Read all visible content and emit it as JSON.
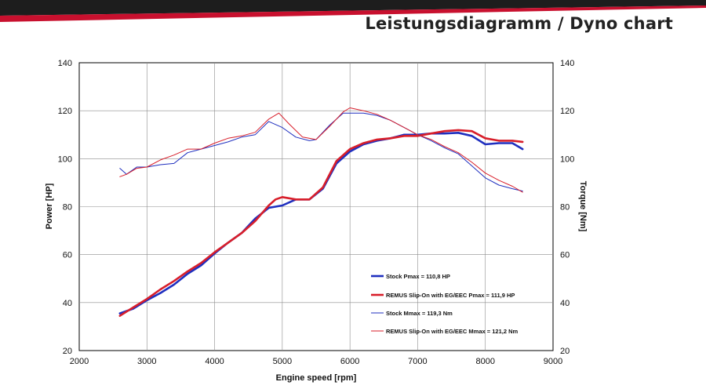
{
  "header": {
    "title": "Leistungsdiagramm / Dyno chart"
  },
  "colors": {
    "stock": "#1f2fbf",
    "remus": "#d81e2a",
    "banner_dark": "#1a1a1a",
    "banner_red": "#c8102e"
  },
  "chart_data": {
    "type": "line",
    "xlabel": "Engine speed [rpm]",
    "ylabel": "Power [HP]",
    "y2label": "Torque [Nm]",
    "xlim": [
      2000,
      9000
    ],
    "ylim": [
      20,
      140
    ],
    "y2lim": [
      20,
      140
    ],
    "x_ticks": [
      2000,
      3000,
      4000,
      5000,
      6000,
      7000,
      8000,
      9000
    ],
    "y_ticks": [
      20,
      40,
      60,
      80,
      100,
      120,
      140
    ],
    "grid": true,
    "legend_position": "lower-right",
    "series": [
      {
        "name": "Stock Pmax = 110,8 HP",
        "axis": "left",
        "width": "thick",
        "color": "#1f2fbf",
        "x": [
          2600,
          2800,
          3000,
          3200,
          3400,
          3600,
          3800,
          4000,
          4200,
          4400,
          4600,
          4800,
          4900,
          5000,
          5200,
          5400,
          5600,
          5800,
          6000,
          6200,
          6400,
          6600,
          6800,
          7000,
          7200,
          7400,
          7600,
          7800,
          8000,
          8200,
          8400,
          8550
        ],
        "y": [
          35.5,
          37.5,
          41,
          44,
          47.5,
          52,
          55.5,
          60.5,
          65,
          69,
          75,
          79.5,
          80,
          80.5,
          83,
          83,
          87.5,
          98,
          103,
          106,
          107.5,
          108.5,
          110,
          110,
          110.5,
          110.5,
          110.8,
          109.5,
          106,
          106.5,
          106.5,
          104
        ]
      },
      {
        "name": "REMUS Slip-On with EG/EEC Pmax =  111,9 HP",
        "axis": "left",
        "width": "thick",
        "color": "#d81e2a",
        "x": [
          2600,
          2800,
          3000,
          3200,
          3400,
          3600,
          3800,
          4000,
          4200,
          4400,
          4600,
          4800,
          4900,
          5000,
          5200,
          5400,
          5600,
          5800,
          6000,
          6200,
          6400,
          6600,
          6800,
          7000,
          7200,
          7400,
          7600,
          7800,
          8000,
          8200,
          8400,
          8550
        ],
        "y": [
          34.5,
          38,
          41.5,
          45.5,
          49,
          53,
          56.5,
          61,
          65,
          69,
          74,
          80.5,
          83,
          84,
          83,
          83,
          88,
          99,
          104,
          106.5,
          108,
          108.5,
          109.5,
          109.5,
          110.5,
          111.5,
          111.9,
          111.5,
          108.5,
          107.5,
          107.5,
          107
        ]
      },
      {
        "name": "Stock Mmax = 119,3 Nm",
        "axis": "right",
        "width": "thin",
        "color": "#1f2fbf",
        "x": [
          2600,
          2700,
          2850,
          3000,
          3200,
          3400,
          3600,
          3800,
          4000,
          4200,
          4400,
          4600,
          4800,
          5000,
          5200,
          5400,
          5500,
          5700,
          5900,
          6000,
          6200,
          6400,
          6600,
          6800,
          7000,
          7200,
          7400,
          7600,
          7800,
          8000,
          8200,
          8400,
          8550
        ],
        "y": [
          96,
          93.5,
          96.5,
          96.5,
          97.5,
          98,
          102.5,
          104,
          105.5,
          107,
          109,
          110,
          115.5,
          113,
          109,
          107.5,
          108,
          114,
          119,
          119,
          119,
          118,
          116,
          113,
          110,
          107.5,
          104.5,
          102,
          97,
          92,
          89,
          87.5,
          86.5
        ]
      },
      {
        "name": "REMUS Slip-On with EG/EEC Mmax = 121,2 Nm",
        "axis": "right",
        "width": "thin",
        "color": "#d81e2a",
        "x": [
          2600,
          2700,
          2850,
          3000,
          3200,
          3400,
          3600,
          3800,
          4000,
          4200,
          4400,
          4600,
          4800,
          4950,
          5100,
          5300,
          5500,
          5700,
          5900,
          6000,
          6200,
          6400,
          6600,
          6800,
          7000,
          7200,
          7400,
          7600,
          7800,
          8000,
          8200,
          8400,
          8550
        ],
        "y": [
          92.5,
          93.5,
          96,
          96.5,
          99.5,
          101.5,
          104,
          104,
          106.5,
          108.5,
          109.5,
          111,
          116.5,
          119,
          114.5,
          109,
          108,
          113.5,
          119.5,
          121.2,
          120,
          118.5,
          116,
          113,
          110,
          108,
          105,
          102.5,
          98.5,
          94,
          91,
          88.5,
          86
        ]
      }
    ]
  }
}
